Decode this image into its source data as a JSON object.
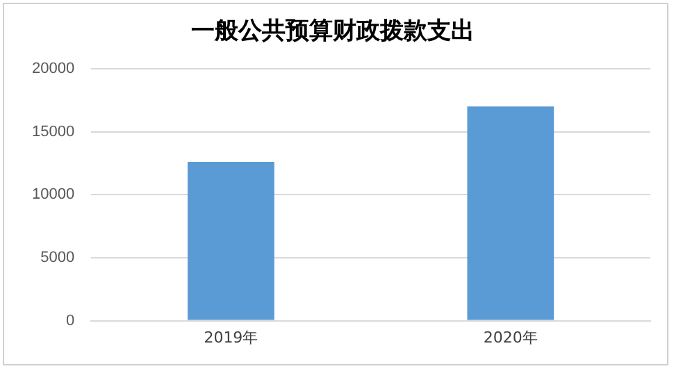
{
  "chart_data": {
    "type": "bar",
    "title": "一般公共预算财政拨款支出",
    "categories": [
      "2019年",
      "2020年"
    ],
    "values": [
      12600,
      17000
    ],
    "color": "#5b9bd5",
    "ylim": [
      0,
      20000
    ],
    "yticks": [
      0,
      5000,
      10000,
      15000,
      20000
    ],
    "grid": "y",
    "legend": false
  }
}
